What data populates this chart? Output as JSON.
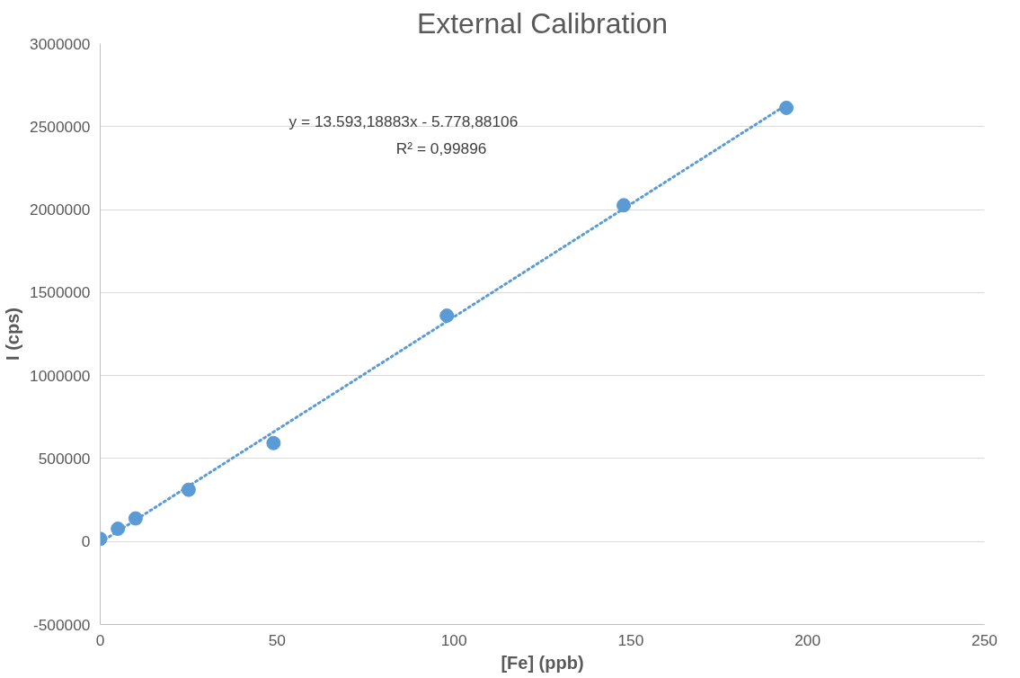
{
  "chart_data": {
    "type": "scatter",
    "title": "External Calibration",
    "xlabel": "[Fe] (ppb)",
    "ylabel": "I (cps)",
    "x": [
      0,
      5,
      10,
      25,
      49,
      98,
      148,
      194
    ],
    "series": [
      {
        "color": "#5b9bd5",
        "marker": "circle",
        "values": [
          16000,
          77000,
          139000,
          312000,
          593000,
          1361000,
          2026000,
          2613000
        ]
      },
      {
        "type": "line",
        "color": "#5b9bd5",
        "line_style": "dotted",
        "x": [
          0,
          194
        ],
        "values": [
          -6000,
          2631000
        ]
      }
    ],
    "annotations": [
      "y = 13.593,18883x - 5.778,88106",
      "R² = 0,99896"
    ],
    "xlim": [
      0,
      250
    ],
    "xticks": [
      0,
      50,
      100,
      150,
      200,
      250
    ],
    "ylim": [
      -500000,
      3000000
    ],
    "yticks": [
      -500000,
      0,
      500000,
      1000000,
      1500000,
      2000000,
      2500000,
      3000000
    ],
    "grid": "y"
  }
}
